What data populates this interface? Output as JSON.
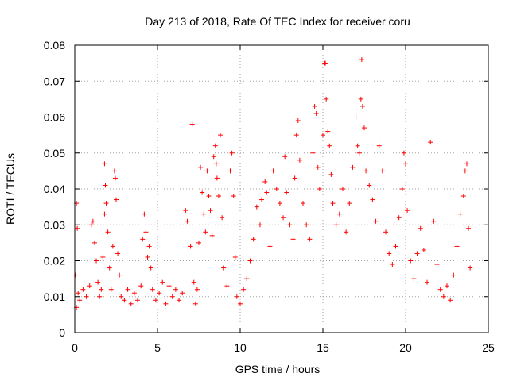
{
  "chart_data": {
    "type": "scatter",
    "title": "Day 213 of 2018, Rate Of TEC Index for receiver coru",
    "xlabel": "GPS time / hours",
    "ylabel": "ROTI / TECUs",
    "xlim": [
      0,
      25
    ],
    "ylim": [
      0,
      0.08
    ],
    "x_ticks": [
      0,
      5,
      10,
      15,
      20,
      25
    ],
    "x_tick_labels": [
      "0",
      "5",
      "10",
      "15",
      "20",
      "25"
    ],
    "y_ticks": [
      0,
      0.01,
      0.02,
      0.03,
      0.04,
      0.05,
      0.06,
      0.07,
      0.08
    ],
    "y_tick_labels": [
      "0",
      "0.01",
      "0.02",
      "0.03",
      "0.04",
      "0.05",
      "0.06",
      "0.07",
      "0.08"
    ],
    "grid": true,
    "marker": "+",
    "marker_color": "#ff0000",
    "series": [
      {
        "points": [
          [
            0.05,
            0.016
          ],
          [
            0.1,
            0.036
          ],
          [
            0.15,
            0.029
          ],
          [
            0.2,
            0.011
          ],
          [
            0.1,
            0.007
          ],
          [
            0.3,
            0.009
          ],
          [
            0.5,
            0.012
          ],
          [
            0.7,
            0.01
          ],
          [
            0.9,
            0.013
          ],
          [
            1.0,
            0.03
          ],
          [
            1.1,
            0.031
          ],
          [
            1.2,
            0.025
          ],
          [
            1.3,
            0.02
          ],
          [
            1.4,
            0.014
          ],
          [
            1.5,
            0.01
          ],
          [
            1.6,
            0.012
          ],
          [
            1.7,
            0.021
          ],
          [
            1.8,
            0.033
          ],
          [
            1.85,
            0.041
          ],
          [
            1.8,
            0.047
          ],
          [
            1.9,
            0.036
          ],
          [
            2.0,
            0.028
          ],
          [
            2.1,
            0.018
          ],
          [
            2.2,
            0.012
          ],
          [
            2.3,
            0.024
          ],
          [
            2.4,
            0.045
          ],
          [
            2.45,
            0.043
          ],
          [
            2.5,
            0.037
          ],
          [
            2.6,
            0.022
          ],
          [
            2.7,
            0.016
          ],
          [
            2.8,
            0.01
          ],
          [
            3.0,
            0.009
          ],
          [
            3.2,
            0.012
          ],
          [
            3.4,
            0.008
          ],
          [
            3.6,
            0.011
          ],
          [
            3.8,
            0.009
          ],
          [
            4.0,
            0.013
          ],
          [
            4.1,
            0.026
          ],
          [
            4.2,
            0.033
          ],
          [
            4.3,
            0.028
          ],
          [
            4.4,
            0.021
          ],
          [
            4.5,
            0.024
          ],
          [
            4.6,
            0.018
          ],
          [
            4.7,
            0.012
          ],
          [
            4.9,
            0.009
          ],
          [
            5.1,
            0.011
          ],
          [
            5.3,
            0.014
          ],
          [
            5.5,
            0.008
          ],
          [
            5.7,
            0.013
          ],
          [
            5.9,
            0.01
          ],
          [
            6.1,
            0.012
          ],
          [
            6.3,
            0.009
          ],
          [
            6.5,
            0.011
          ],
          [
            6.7,
            0.034
          ],
          [
            6.8,
            0.031
          ],
          [
            7.0,
            0.024
          ],
          [
            7.1,
            0.058
          ],
          [
            7.2,
            0.014
          ],
          [
            7.3,
            0.008
          ],
          [
            7.4,
            0.012
          ],
          [
            7.5,
            0.025
          ],
          [
            7.6,
            0.046
          ],
          [
            7.7,
            0.039
          ],
          [
            7.8,
            0.033
          ],
          [
            7.9,
            0.028
          ],
          [
            8.0,
            0.045
          ],
          [
            8.1,
            0.038
          ],
          [
            8.2,
            0.034
          ],
          [
            8.3,
            0.027
          ],
          [
            8.4,
            0.049
          ],
          [
            8.5,
            0.052
          ],
          [
            8.55,
            0.047
          ],
          [
            8.6,
            0.043
          ],
          [
            8.7,
            0.038
          ],
          [
            8.8,
            0.055
          ],
          [
            8.9,
            0.032
          ],
          [
            9.0,
            0.018
          ],
          [
            9.2,
            0.013
          ],
          [
            9.4,
            0.045
          ],
          [
            9.5,
            0.05
          ],
          [
            9.6,
            0.038
          ],
          [
            9.7,
            0.021
          ],
          [
            9.8,
            0.01
          ],
          [
            10.0,
            0.008
          ],
          [
            10.2,
            0.012
          ],
          [
            10.4,
            0.015
          ],
          [
            10.6,
            0.02
          ],
          [
            10.8,
            0.026
          ],
          [
            11.0,
            0.035
          ],
          [
            11.2,
            0.03
          ],
          [
            11.3,
            0.037
          ],
          [
            11.5,
            0.042
          ],
          [
            11.6,
            0.039
          ],
          [
            11.8,
            0.024
          ],
          [
            12.0,
            0.045
          ],
          [
            12.2,
            0.04
          ],
          [
            12.4,
            0.036
          ],
          [
            12.6,
            0.032
          ],
          [
            12.7,
            0.049
          ],
          [
            12.8,
            0.039
          ],
          [
            13.0,
            0.03
          ],
          [
            13.2,
            0.026
          ],
          [
            13.3,
            0.043
          ],
          [
            13.4,
            0.055
          ],
          [
            13.5,
            0.059
          ],
          [
            13.6,
            0.048
          ],
          [
            13.8,
            0.036
          ],
          [
            14.0,
            0.03
          ],
          [
            14.2,
            0.026
          ],
          [
            14.4,
            0.05
          ],
          [
            14.5,
            0.063
          ],
          [
            14.6,
            0.061
          ],
          [
            14.7,
            0.046
          ],
          [
            14.8,
            0.04
          ],
          [
            15.0,
            0.055
          ],
          [
            15.1,
            0.075
          ],
          [
            15.15,
            0.075
          ],
          [
            15.2,
            0.065
          ],
          [
            15.3,
            0.056
          ],
          [
            15.4,
            0.052
          ],
          [
            15.5,
            0.044
          ],
          [
            15.6,
            0.036
          ],
          [
            15.8,
            0.03
          ],
          [
            16.0,
            0.033
          ],
          [
            16.2,
            0.04
          ],
          [
            16.4,
            0.028
          ],
          [
            16.6,
            0.036
          ],
          [
            16.8,
            0.046
          ],
          [
            17.0,
            0.06
          ],
          [
            17.1,
            0.052
          ],
          [
            17.2,
            0.05
          ],
          [
            17.3,
            0.065
          ],
          [
            17.35,
            0.076
          ],
          [
            17.4,
            0.063
          ],
          [
            17.5,
            0.057
          ],
          [
            17.6,
            0.045
          ],
          [
            17.8,
            0.041
          ],
          [
            18.0,
            0.037
          ],
          [
            18.2,
            0.031
          ],
          [
            18.4,
            0.052
          ],
          [
            18.6,
            0.045
          ],
          [
            18.8,
            0.028
          ],
          [
            19.0,
            0.022
          ],
          [
            19.2,
            0.019
          ],
          [
            19.4,
            0.024
          ],
          [
            19.6,
            0.032
          ],
          [
            19.8,
            0.04
          ],
          [
            19.9,
            0.05
          ],
          [
            20.0,
            0.047
          ],
          [
            20.1,
            0.034
          ],
          [
            20.3,
            0.02
          ],
          [
            20.5,
            0.015
          ],
          [
            20.7,
            0.022
          ],
          [
            20.9,
            0.029
          ],
          [
            21.1,
            0.023
          ],
          [
            21.3,
            0.014
          ],
          [
            21.5,
            0.053
          ],
          [
            21.7,
            0.031
          ],
          [
            21.9,
            0.019
          ],
          [
            22.1,
            0.012
          ],
          [
            22.3,
            0.01
          ],
          [
            22.5,
            0.013
          ],
          [
            22.7,
            0.009
          ],
          [
            22.9,
            0.016
          ],
          [
            23.1,
            0.024
          ],
          [
            23.3,
            0.033
          ],
          [
            23.5,
            0.038
          ],
          [
            23.6,
            0.045
          ],
          [
            23.7,
            0.047
          ],
          [
            23.8,
            0.029
          ],
          [
            23.9,
            0.018
          ]
        ]
      }
    ]
  }
}
